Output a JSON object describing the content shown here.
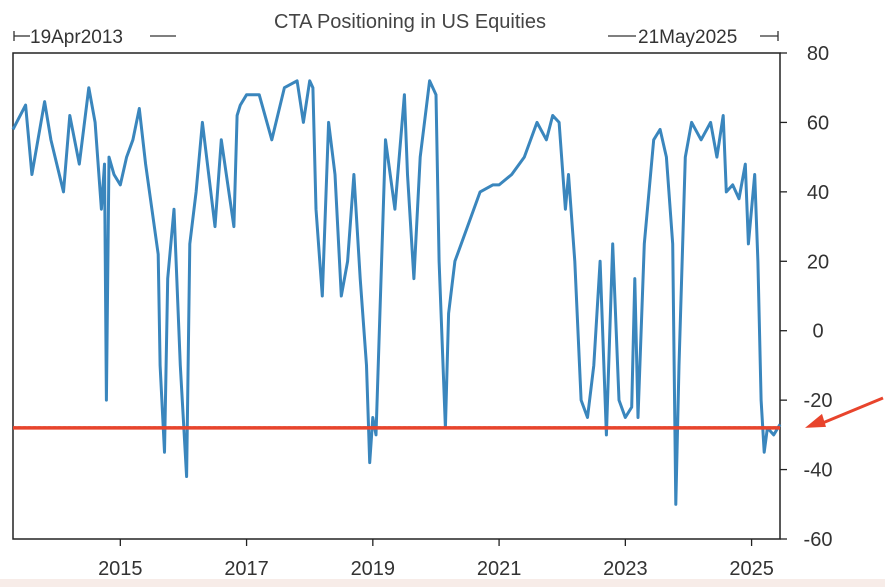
{
  "chart_data": {
    "type": "line",
    "title": "CTA Positioning in US Equities",
    "start_label": "19Apr2013",
    "end_label": "21May2025",
    "xlabel": "",
    "ylabel": "",
    "ylim": [
      -60,
      80
    ],
    "y_ticks": [
      "80",
      "60",
      "40",
      "20",
      "0",
      "-20",
      "-40",
      "-60"
    ],
    "x_ticks": [
      "2015",
      "2017",
      "2019",
      "2021",
      "2023",
      "2025"
    ],
    "x_range": [
      2013.3,
      2025.45
    ],
    "y_axis_side": "right",
    "grid": false,
    "legend": "none",
    "line_color": "#3a86bd",
    "reference_line": {
      "value": -28,
      "color": "#e8442c",
      "arrow": true
    },
    "series": [
      {
        "x": [
          2013.3,
          2013.5,
          2013.6,
          2013.8,
          2013.9,
          2014.1,
          2014.2,
          2014.35,
          2014.5,
          2014.6,
          2014.7,
          2014.75,
          2014.78,
          2014.82,
          2014.9,
          2015.0,
          2015.1,
          2015.2,
          2015.3,
          2015.4,
          2015.5,
          2015.6,
          2015.63,
          2015.7,
          2015.75,
          2015.85,
          2015.95,
          2016.05,
          2016.1,
          2016.2,
          2016.3,
          2016.4,
          2016.5,
          2016.6,
          2016.8,
          2016.85,
          2016.9,
          2017.0,
          2017.2,
          2017.4,
          2017.6,
          2017.8,
          2017.9,
          2018.0,
          2018.05,
          2018.1,
          2018.2,
          2018.3,
          2018.4,
          2018.5,
          2018.6,
          2018.7,
          2018.8,
          2018.9,
          2018.95,
          2019.0,
          2019.05,
          2019.2,
          2019.35,
          2019.5,
          2019.55,
          2019.65,
          2019.75,
          2019.9,
          2020.0,
          2020.05,
          2020.15,
          2020.2,
          2020.3,
          2020.5,
          2020.7,
          2020.9,
          2021.0,
          2021.2,
          2021.4,
          2021.6,
          2021.75,
          2021.85,
          2021.95,
          2022.05,
          2022.1,
          2022.2,
          2022.3,
          2022.4,
          2022.5,
          2022.6,
          2022.7,
          2022.8,
          2022.9,
          2023.0,
          2023.1,
          2023.15,
          2023.2,
          2023.3,
          2023.45,
          2023.55,
          2023.65,
          2023.75,
          2023.8,
          2023.85,
          2023.95,
          2024.05,
          2024.2,
          2024.35,
          2024.45,
          2024.55,
          2024.6,
          2024.7,
          2024.8,
          2024.9,
          2024.95,
          2025.05,
          2025.1,
          2025.15,
          2025.2,
          2025.25,
          2025.35,
          2025.45
        ],
        "y": [
          58,
          65,
          45,
          66,
          55,
          40,
          62,
          48,
          70,
          60,
          35,
          48,
          -20,
          50,
          45,
          42,
          50,
          55,
          64,
          48,
          35,
          22,
          -10,
          -35,
          15,
          35,
          -10,
          -42,
          25,
          40,
          60,
          45,
          30,
          55,
          30,
          62,
          65,
          68,
          68,
          55,
          70,
          72,
          60,
          72,
          70,
          35,
          10,
          60,
          45,
          10,
          20,
          45,
          15,
          -10,
          -38,
          -25,
          -30,
          55,
          35,
          68,
          45,
          15,
          50,
          72,
          68,
          20,
          -28,
          5,
          20,
          30,
          40,
          42,
          42,
          45,
          50,
          60,
          55,
          62,
          60,
          35,
          45,
          20,
          -20,
          -25,
          -10,
          20,
          -30,
          25,
          -20,
          -25,
          -22,
          15,
          -25,
          25,
          55,
          58,
          50,
          25,
          -50,
          -10,
          50,
          60,
          55,
          60,
          50,
          62,
          40,
          42,
          38,
          48,
          25,
          45,
          20,
          -20,
          -35,
          -28,
          -30,
          -27
        ]
      }
    ]
  }
}
